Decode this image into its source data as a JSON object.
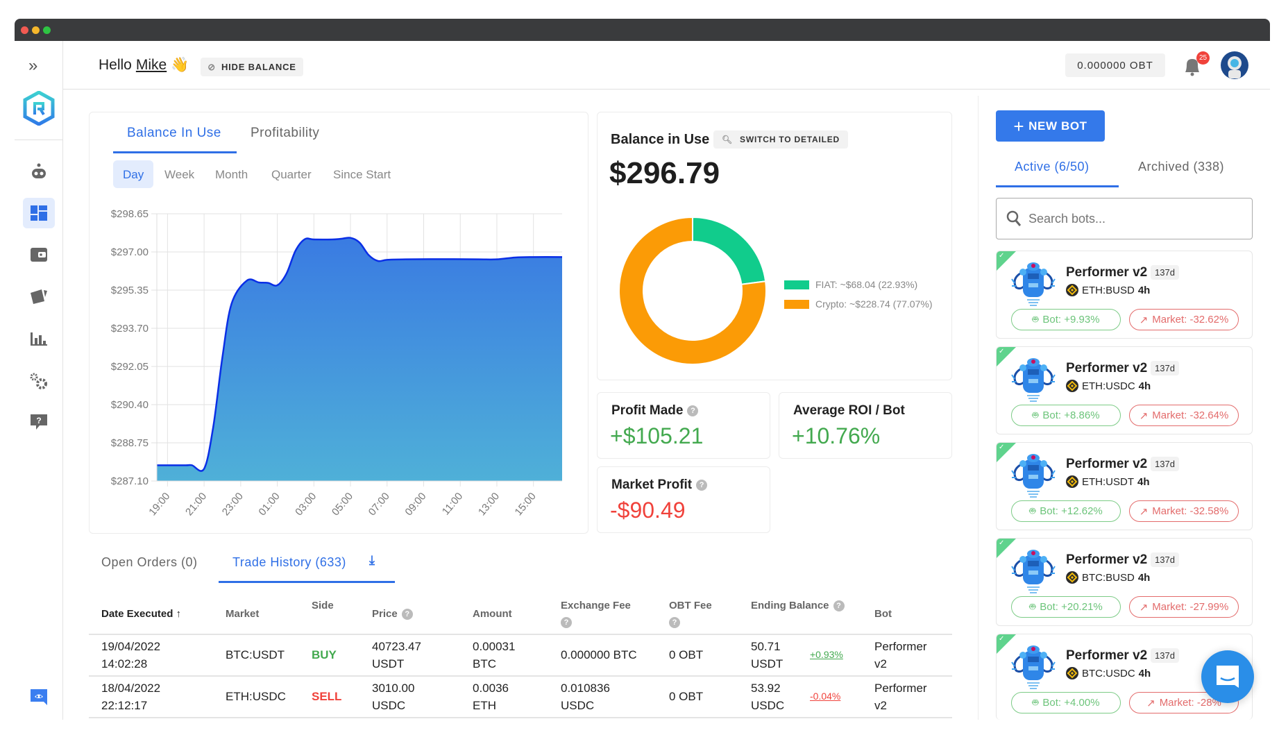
{
  "header": {
    "greeting": "Hello",
    "user": "Mike",
    "wave": "👋",
    "hide_balance": "HIDE BALANCE",
    "obt_balance": "0.000000 OBT",
    "notifications": "25"
  },
  "sidebar": {
    "items": [
      "robot-icon",
      "dashboard-icon",
      "wallet-icon",
      "cards-icon",
      "bar-chart-icon",
      "settings-icon",
      "help-icon"
    ],
    "active": "dashboard",
    "discord": "discord-icon"
  },
  "chart_tabs": {
    "tabs": [
      "Balance In Use",
      "Profitability"
    ],
    "active": 0,
    "periods": [
      "Day",
      "Week",
      "Month",
      "Quarter",
      "Since Start"
    ],
    "active_period": 0
  },
  "chart_data": {
    "type": "area",
    "ylim": [
      287.1,
      298.65
    ],
    "yticks": [
      "$298.65",
      "$297.00",
      "$295.35",
      "$293.70",
      "$292.05",
      "$290.40",
      "$288.75",
      "$287.10"
    ],
    "xticks": [
      "19:00",
      "21:00",
      "23:00",
      "01:00",
      "03:00",
      "05:00",
      "07:00",
      "09:00",
      "11:00",
      "13:00",
      "15:00"
    ],
    "grid": true,
    "x": [
      "18:25",
      "19:00",
      "20:00",
      "20:20",
      "21:00",
      "21:30",
      "22:00",
      "22:30",
      "23:20",
      "00:00",
      "00:30",
      "01:00",
      "01:30",
      "02:00",
      "02:30",
      "03:00",
      "04:00",
      "04:30",
      "05:00",
      "05:30",
      "06:00",
      "06:30",
      "07:00",
      "08:00",
      "10:00",
      "12:00",
      "13:00",
      "14:00",
      "15:00",
      "16:34"
    ],
    "y": [
      287.78,
      287.78,
      287.78,
      287.78,
      287.63,
      289.44,
      292.45,
      294.76,
      295.76,
      295.68,
      295.66,
      295.56,
      296.06,
      297.06,
      297.55,
      297.54,
      297.54,
      297.57,
      297.61,
      297.4,
      296.86,
      296.61,
      296.66,
      296.68,
      296.69,
      296.68,
      296.68,
      296.76,
      296.78,
      296.78
    ],
    "colors": {
      "line": "#0a2fe6",
      "fill_top": "#3a7be2",
      "fill_bottom": "#4fb0d8"
    }
  },
  "balance": {
    "title": "Balance in Use",
    "switch_label": "SWITCH TO DETAILED",
    "total": "$296.79",
    "donut": [
      {
        "label": "FIAT: ~$68.04 (22.93%)",
        "value": 22.93,
        "color": "#11cc8c"
      },
      {
        "label": "Crypto: ~$228.74 (77.07%)",
        "value": 77.07,
        "color": "#fb9b06"
      }
    ]
  },
  "stats": {
    "profit_title": "Profit Made",
    "profit_value": "+$105.21",
    "roi_title": "Average ROI / Bot",
    "roi_value": "+10.76%",
    "market_title": "Market Profit",
    "market_value": "-$90.49",
    "green": "#43a94f",
    "red": "#f0423b"
  },
  "orders": {
    "tabs": [
      "Open Orders (0)",
      "Trade History (633)"
    ],
    "active": 1,
    "columns": [
      "Date Executed",
      "Market",
      "Side",
      "Price",
      "Amount",
      "Exchange Fee",
      "OBT Fee",
      "Ending Balance",
      "Bot"
    ],
    "rows": [
      {
        "date": "19/04/2022",
        "time": "14:02:28",
        "market": "BTC:USDT",
        "side": "BUY",
        "price": "40723.47",
        "price_unit": "USDT",
        "amount": "0.00031",
        "amount_unit": "BTC",
        "exch_fee": "0.000000 BTC",
        "exch_fee2": "",
        "obt_fee": "0 OBT",
        "bal": "50.71",
        "bal_unit": "USDT",
        "change": "+0.93%",
        "bot": "Performer",
        "bot2": "v2"
      },
      {
        "date": "18/04/2022",
        "time": "22:12:17",
        "market": "ETH:USDC",
        "side": "SELL",
        "price": "3010.00",
        "price_unit": "USDC",
        "amount": "0.0036",
        "amount_unit": "ETH",
        "exch_fee": "0.010836",
        "exch_fee2": "USDC",
        "obt_fee": "0 OBT",
        "bal": "53.92",
        "bal_unit": "USDC",
        "change": "-0.04%",
        "bot": "Performer",
        "bot2": "v2"
      }
    ]
  },
  "bots": {
    "new_bot": "NEW BOT",
    "tabs": [
      "Active (6/50)",
      "Archived (338)"
    ],
    "search_placeholder": "Search bots...",
    "items": [
      {
        "name": "Performer v2",
        "age": "137d",
        "pair": "ETH:BUSD",
        "interval": "4h",
        "bot": "Bot: +9.93%",
        "market": "Market: -32.62%"
      },
      {
        "name": "Performer v2",
        "age": "137d",
        "pair": "ETH:USDC",
        "interval": "4h",
        "bot": "Bot: +8.86%",
        "market": "Market: -32.64%"
      },
      {
        "name": "Performer v2",
        "age": "137d",
        "pair": "ETH:USDT",
        "interval": "4h",
        "bot": "Bot: +12.62%",
        "market": "Market: -32.58%"
      },
      {
        "name": "Performer v2",
        "age": "137d",
        "pair": "BTC:BUSD",
        "interval": "4h",
        "bot": "Bot: +20.21%",
        "market": "Market: -27.99%"
      },
      {
        "name": "Performer v2",
        "age": "137d",
        "pair": "BTC:USDC",
        "interval": "4h",
        "bot": "Bot: +4.00%",
        "market": "Market: -28%"
      }
    ]
  }
}
